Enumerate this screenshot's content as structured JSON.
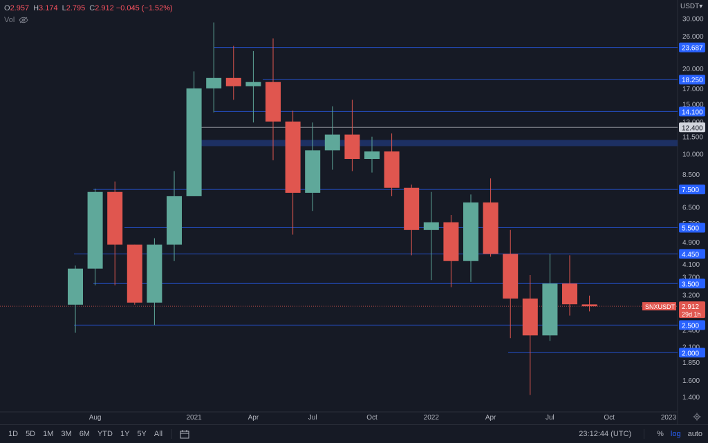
{
  "header": {
    "ohlc": [
      {
        "key": "O",
        "value": "2.957"
      },
      {
        "key": "H",
        "value": "3.174"
      },
      {
        "key": "L",
        "value": "2.795"
      },
      {
        "key": "C",
        "value": "2.912 −0.045 (−1.52%)"
      }
    ],
    "vol_label": "Vol"
  },
  "currency": "USDT",
  "chart_data": {
    "type": "candlestick",
    "symbol": "SNXUSDT",
    "interval": "1M",
    "y_scale": "log",
    "y_range": [
      1.25,
      32
    ],
    "y_ticks": [
      "30.000",
      "26.000",
      "20.000",
      "17.000",
      "15.000",
      "13.000",
      "11.500",
      "10.000",
      "8.500",
      "6.500",
      "5.700",
      "4.900",
      "4.100",
      "3.700",
      "3.200",
      "2.400",
      "2.100",
      "1.850",
      "1.600",
      "1.400"
    ],
    "x_ticks": [
      "Aug",
      "2021",
      "Apr",
      "Jul",
      "Oct",
      "2022",
      "Apr",
      "Jul",
      "Oct",
      "2023"
    ],
    "candles": [
      {
        "date": "2020-06",
        "o": 2.95,
        "h": 4.05,
        "l": 2.35,
        "c": 3.95
      },
      {
        "date": "2020-07",
        "o": 3.95,
        "h": 7.55,
        "l": 3.45,
        "c": 7.35
      },
      {
        "date": "2020-08",
        "o": 7.35,
        "h": 8.0,
        "l": 3.45,
        "c": 4.8
      },
      {
        "date": "2020-09",
        "o": 4.8,
        "h": 4.8,
        "l": 2.95,
        "c": 3.0
      },
      {
        "date": "2020-10",
        "o": 3.0,
        "h": 5.05,
        "l": 2.5,
        "c": 4.8
      },
      {
        "date": "2020-11",
        "o": 4.8,
        "h": 8.7,
        "l": 4.2,
        "c": 7.1
      },
      {
        "date": "2020-12",
        "o": 7.1,
        "h": 19.5,
        "l": 7.1,
        "c": 17.0
      },
      {
        "date": "2021-01",
        "o": 17.0,
        "h": 29.0,
        "l": 14.0,
        "c": 18.5
      },
      {
        "date": "2021-02",
        "o": 18.5,
        "h": 24.0,
        "l": 15.5,
        "c": 17.3
      },
      {
        "date": "2021-03",
        "o": 17.3,
        "h": 23.0,
        "l": 12.9,
        "c": 17.9
      },
      {
        "date": "2021-04",
        "o": 17.9,
        "h": 25.5,
        "l": 9.5,
        "c": 13.0
      },
      {
        "date": "2021-05",
        "o": 13.0,
        "h": 14.2,
        "l": 5.2,
        "c": 7.3
      },
      {
        "date": "2021-06",
        "o": 7.3,
        "h": 12.9,
        "l": 6.3,
        "c": 10.3
      },
      {
        "date": "2021-07",
        "o": 10.3,
        "h": 14.7,
        "l": 8.8,
        "c": 11.7
      },
      {
        "date": "2021-08",
        "o": 11.7,
        "h": 15.5,
        "l": 8.7,
        "c": 9.6
      },
      {
        "date": "2021-09",
        "o": 9.6,
        "h": 11.5,
        "l": 8.6,
        "c": 10.2
      },
      {
        "date": "2021-10",
        "o": 10.2,
        "h": 11.8,
        "l": 7.1,
        "c": 7.6
      },
      {
        "date": "2021-11",
        "o": 7.6,
        "h": 7.8,
        "l": 4.4,
        "c": 5.4
      },
      {
        "date": "2021-12",
        "o": 5.4,
        "h": 7.35,
        "l": 3.6,
        "c": 5.75
      },
      {
        "date": "2022-01",
        "o": 5.75,
        "h": 6.1,
        "l": 3.4,
        "c": 4.2
      },
      {
        "date": "2022-02",
        "o": 4.2,
        "h": 7.2,
        "l": 3.55,
        "c": 6.75
      },
      {
        "date": "2022-03",
        "o": 6.75,
        "h": 8.2,
        "l": 4.35,
        "c": 4.45
      },
      {
        "date": "2022-04",
        "o": 4.45,
        "h": 5.4,
        "l": 2.25,
        "c": 3.1
      },
      {
        "date": "2022-05",
        "o": 3.1,
        "h": 3.75,
        "l": 1.42,
        "c": 2.3
      },
      {
        "date": "2022-06",
        "o": 2.3,
        "h": 4.45,
        "l": 2.2,
        "c": 3.5
      },
      {
        "date": "2022-07",
        "o": 3.5,
        "h": 4.4,
        "l": 2.7,
        "c": 2.96
      },
      {
        "date": "2022-08",
        "o": 2.957,
        "h": 3.174,
        "l": 2.795,
        "c": 2.912
      }
    ],
    "levels": [
      {
        "price": 23.687,
        "label": "23.687",
        "color": "#2962ff"
      },
      {
        "price": 18.25,
        "label": "18.250",
        "color": "#2962ff"
      },
      {
        "price": 14.1,
        "label": "14.100",
        "color": "#2962ff"
      },
      {
        "price": 12.4,
        "label": "12.400",
        "color": "#b2b5be"
      },
      {
        "price": 7.5,
        "label": "7.500",
        "color": "#2962ff"
      },
      {
        "price": 5.5,
        "label": "5.500",
        "color": "#2962ff"
      },
      {
        "price": 4.45,
        "label": "4.450",
        "color": "#2962ff"
      },
      {
        "price": 3.5,
        "label": "3.500",
        "color": "#2962ff"
      },
      {
        "price": 2.5,
        "label": "2.500",
        "color": "#2962ff"
      },
      {
        "price": 2.0,
        "label": "2.000",
        "color": "#2962ff"
      }
    ],
    "zone": {
      "top": 11.2,
      "bottom": 10.65,
      "color": "#1e3266"
    },
    "last_price": {
      "label": "2.912",
      "countdown": "29d 1h",
      "symbol_tag": "SNXUSDT",
      "color": "#e0564f"
    },
    "colors": {
      "up": "#5fa89a",
      "down": "#e0564f"
    }
  },
  "bottom_bar": {
    "timeframes": [
      "1D",
      "5D",
      "1M",
      "3M",
      "6M",
      "YTD",
      "1Y",
      "5Y",
      "All"
    ],
    "clock": "23:12:44 (UTC)",
    "percent": "%",
    "log": "log",
    "auto": "auto"
  }
}
